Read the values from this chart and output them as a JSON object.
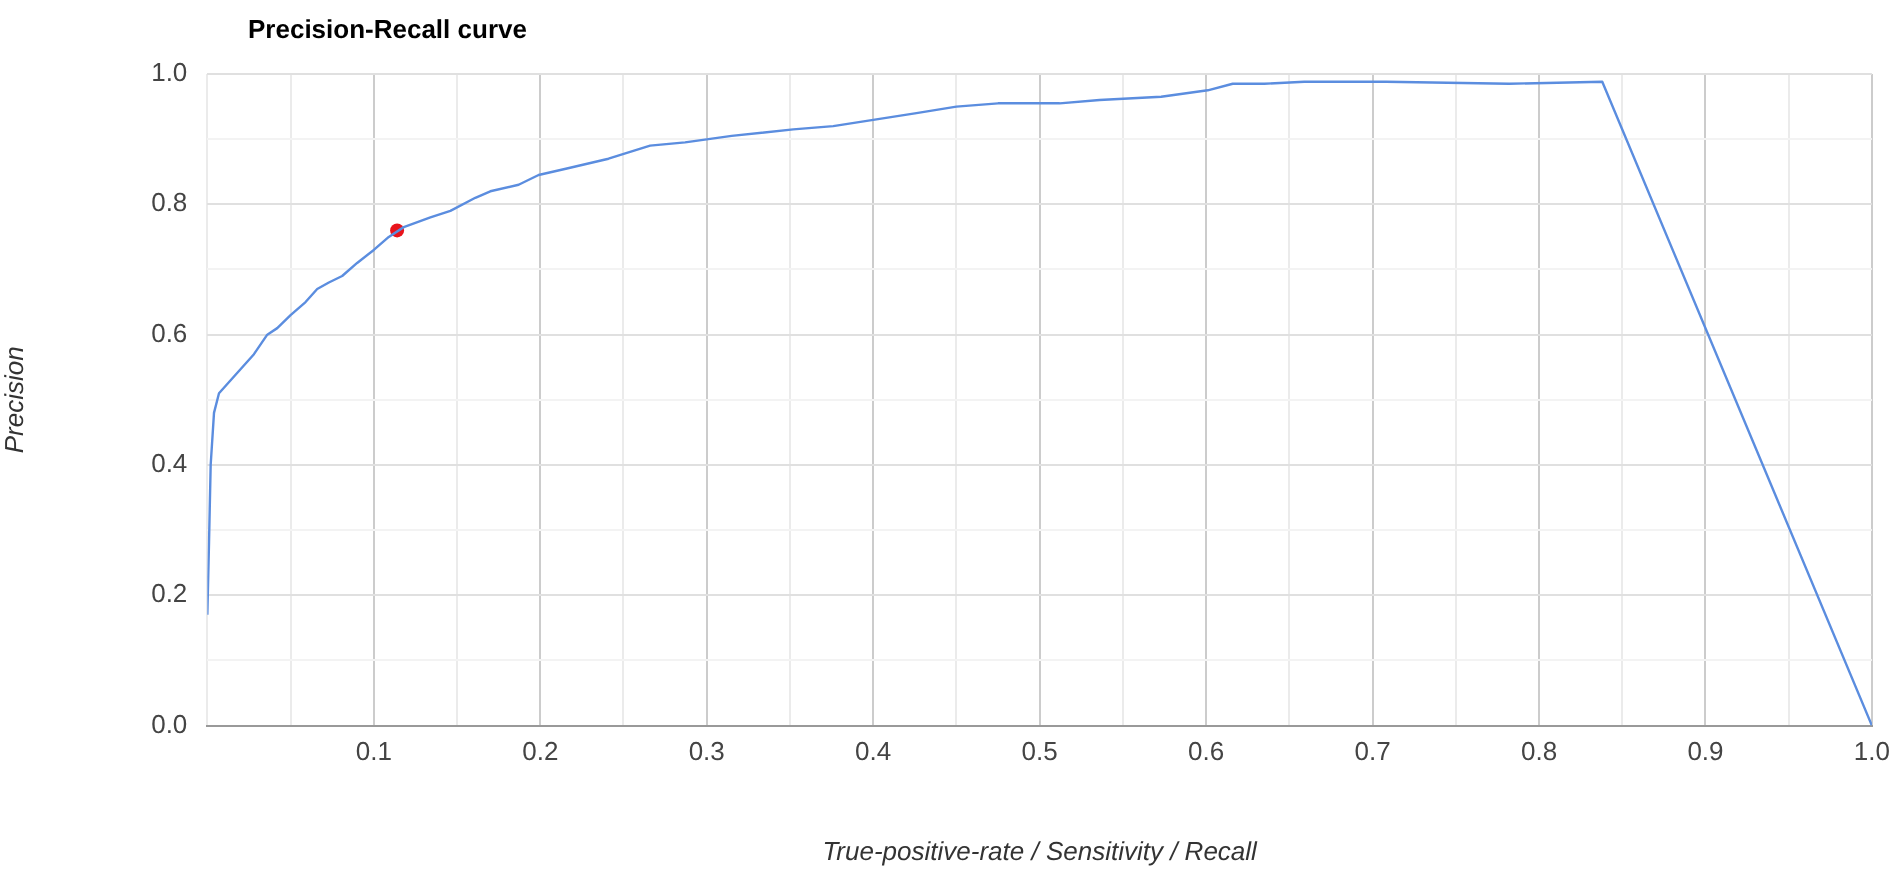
{
  "chart_data": {
    "type": "line",
    "title": "Precision-Recall curve",
    "xlabel": "True-positive-rate / Sensitivity / Recall",
    "ylabel": "Precision",
    "series": [
      {
        "color": "#5b8ddf",
        "x": [
          0,
          0.001,
          0.002,
          0.004,
          0.007,
          0.014,
          0.021,
          0.028,
          0.036,
          0.042,
          0.05,
          0.059,
          0.066,
          0.073,
          0.081,
          0.09,
          0.1,
          0.109,
          0.118,
          0.134,
          0.146,
          0.161,
          0.17,
          0.187,
          0.199,
          0.216,
          0.241,
          0.266,
          0.287,
          0.301,
          0.315,
          0.352,
          0.376,
          0.401,
          0.426,
          0.45,
          0.475,
          0.512,
          0.536,
          0.573,
          0.601,
          0.616,
          0.635,
          0.659,
          0.708,
          0.782,
          0.838,
          1
        ],
        "values": [
          0.17,
          0.28,
          0.4,
          0.48,
          0.51,
          0.53,
          0.55,
          0.57,
          0.6,
          0.61,
          0.63,
          0.65,
          0.67,
          0.68,
          0.69,
          0.71,
          0.73,
          0.75,
          0.765,
          0.78,
          0.79,
          0.81,
          0.82,
          0.83,
          0.845,
          0.855,
          0.87,
          0.89,
          0.895,
          0.9,
          0.905,
          0.915,
          0.92,
          0.93,
          0.94,
          0.95,
          0.955,
          0.955,
          0.96,
          0.965,
          0.975,
          0.985,
          0.985,
          0.988,
          0.988,
          0.985,
          0.988,
          0
        ]
      },
      {
        "type": "scatter",
        "color": "#e8141c",
        "marker": "circle",
        "x": [
          0.114
        ],
        "values": [
          0.76
        ]
      }
    ],
    "xlim": [
      0,
      1
    ],
    "xticks": [
      {
        "value": 0,
        "label": null
      },
      {
        "value": 0.05,
        "label": null
      },
      0.1,
      {
        "value": 0.15,
        "label": null
      },
      0.2,
      {
        "value": 0.25,
        "label": null
      },
      0.3,
      {
        "value": 0.35,
        "label": null
      },
      0.4,
      {
        "value": 0.45,
        "label": null
      },
      0.5,
      {
        "value": 0.55,
        "label": null
      },
      0.6,
      {
        "value": 0.65,
        "label": null
      },
      0.7,
      {
        "value": 0.75,
        "label": null
      },
      0.8,
      {
        "value": 0.85,
        "label": null
      },
      0.9,
      {
        "value": 0.95,
        "label": null
      },
      {
        "value": 1,
        "label": "1.0"
      }
    ],
    "ylim": [
      0,
      1
    ],
    "yticks": [
      {
        "value": 0,
        "label": "0.0"
      },
      {
        "value": 0.1,
        "label": null
      },
      0.2,
      {
        "value": 0.3,
        "label": null
      },
      0.4,
      {
        "value": 0.5,
        "label": null
      },
      0.6,
      {
        "value": 0.7,
        "label": null
      },
      0.8,
      {
        "value": 0.9,
        "label": null
      },
      {
        "value": 1,
        "label": "1.0"
      }
    ],
    "grid": true,
    "legend": false,
    "marker": "none",
    "line_style": "solid"
  }
}
